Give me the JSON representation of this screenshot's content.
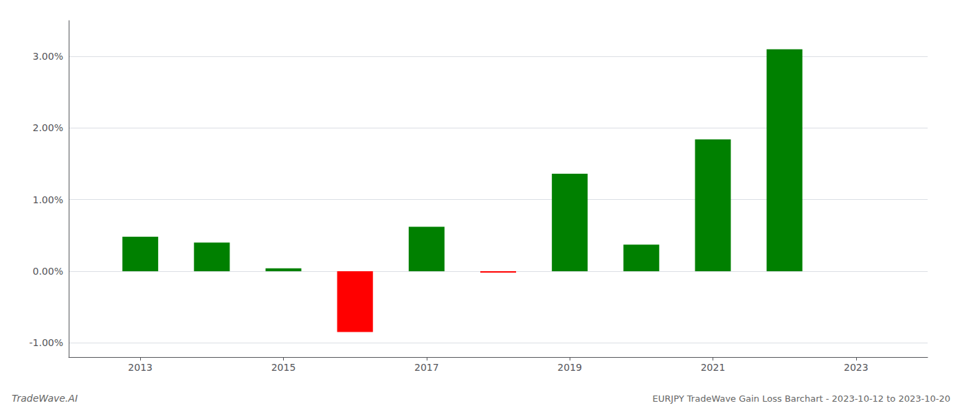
{
  "chart_data": {
    "type": "bar",
    "title": "EURJPY TradeWave Gain Loss Barchart - 2023-10-12 to 2023-10-20",
    "annotations": [
      "TradeWave.AI"
    ],
    "x": [
      2013,
      2014,
      2015,
      2016,
      2017,
      2018,
      2019,
      2020,
      2021,
      2022
    ],
    "values": [
      0.0048,
      0.004,
      0.0004,
      -0.0085,
      0.0062,
      -0.0002,
      0.0136,
      0.0037,
      0.0184,
      0.031
    ],
    "colors": [
      "#008000",
      "#008000",
      "#008000",
      "#ff0000",
      "#008000",
      "#ff0000",
      "#008000",
      "#008000",
      "#008000",
      "#008000"
    ],
    "xlim": [
      2012.0,
      2024.0
    ],
    "xticks": [
      2013,
      2015,
      2017,
      2019,
      2021,
      2023
    ],
    "ylim": [
      -0.012,
      0.035
    ],
    "yticks": [
      {
        "value": -0.01,
        "label": "-1.00%"
      },
      {
        "value": 0.0,
        "label": "0.00%"
      },
      {
        "value": 0.01,
        "label": "1.00%"
      },
      {
        "value": 0.02,
        "label": "2.00%"
      },
      {
        "value": 0.03,
        "label": "3.00%"
      }
    ],
    "grid": true
  }
}
